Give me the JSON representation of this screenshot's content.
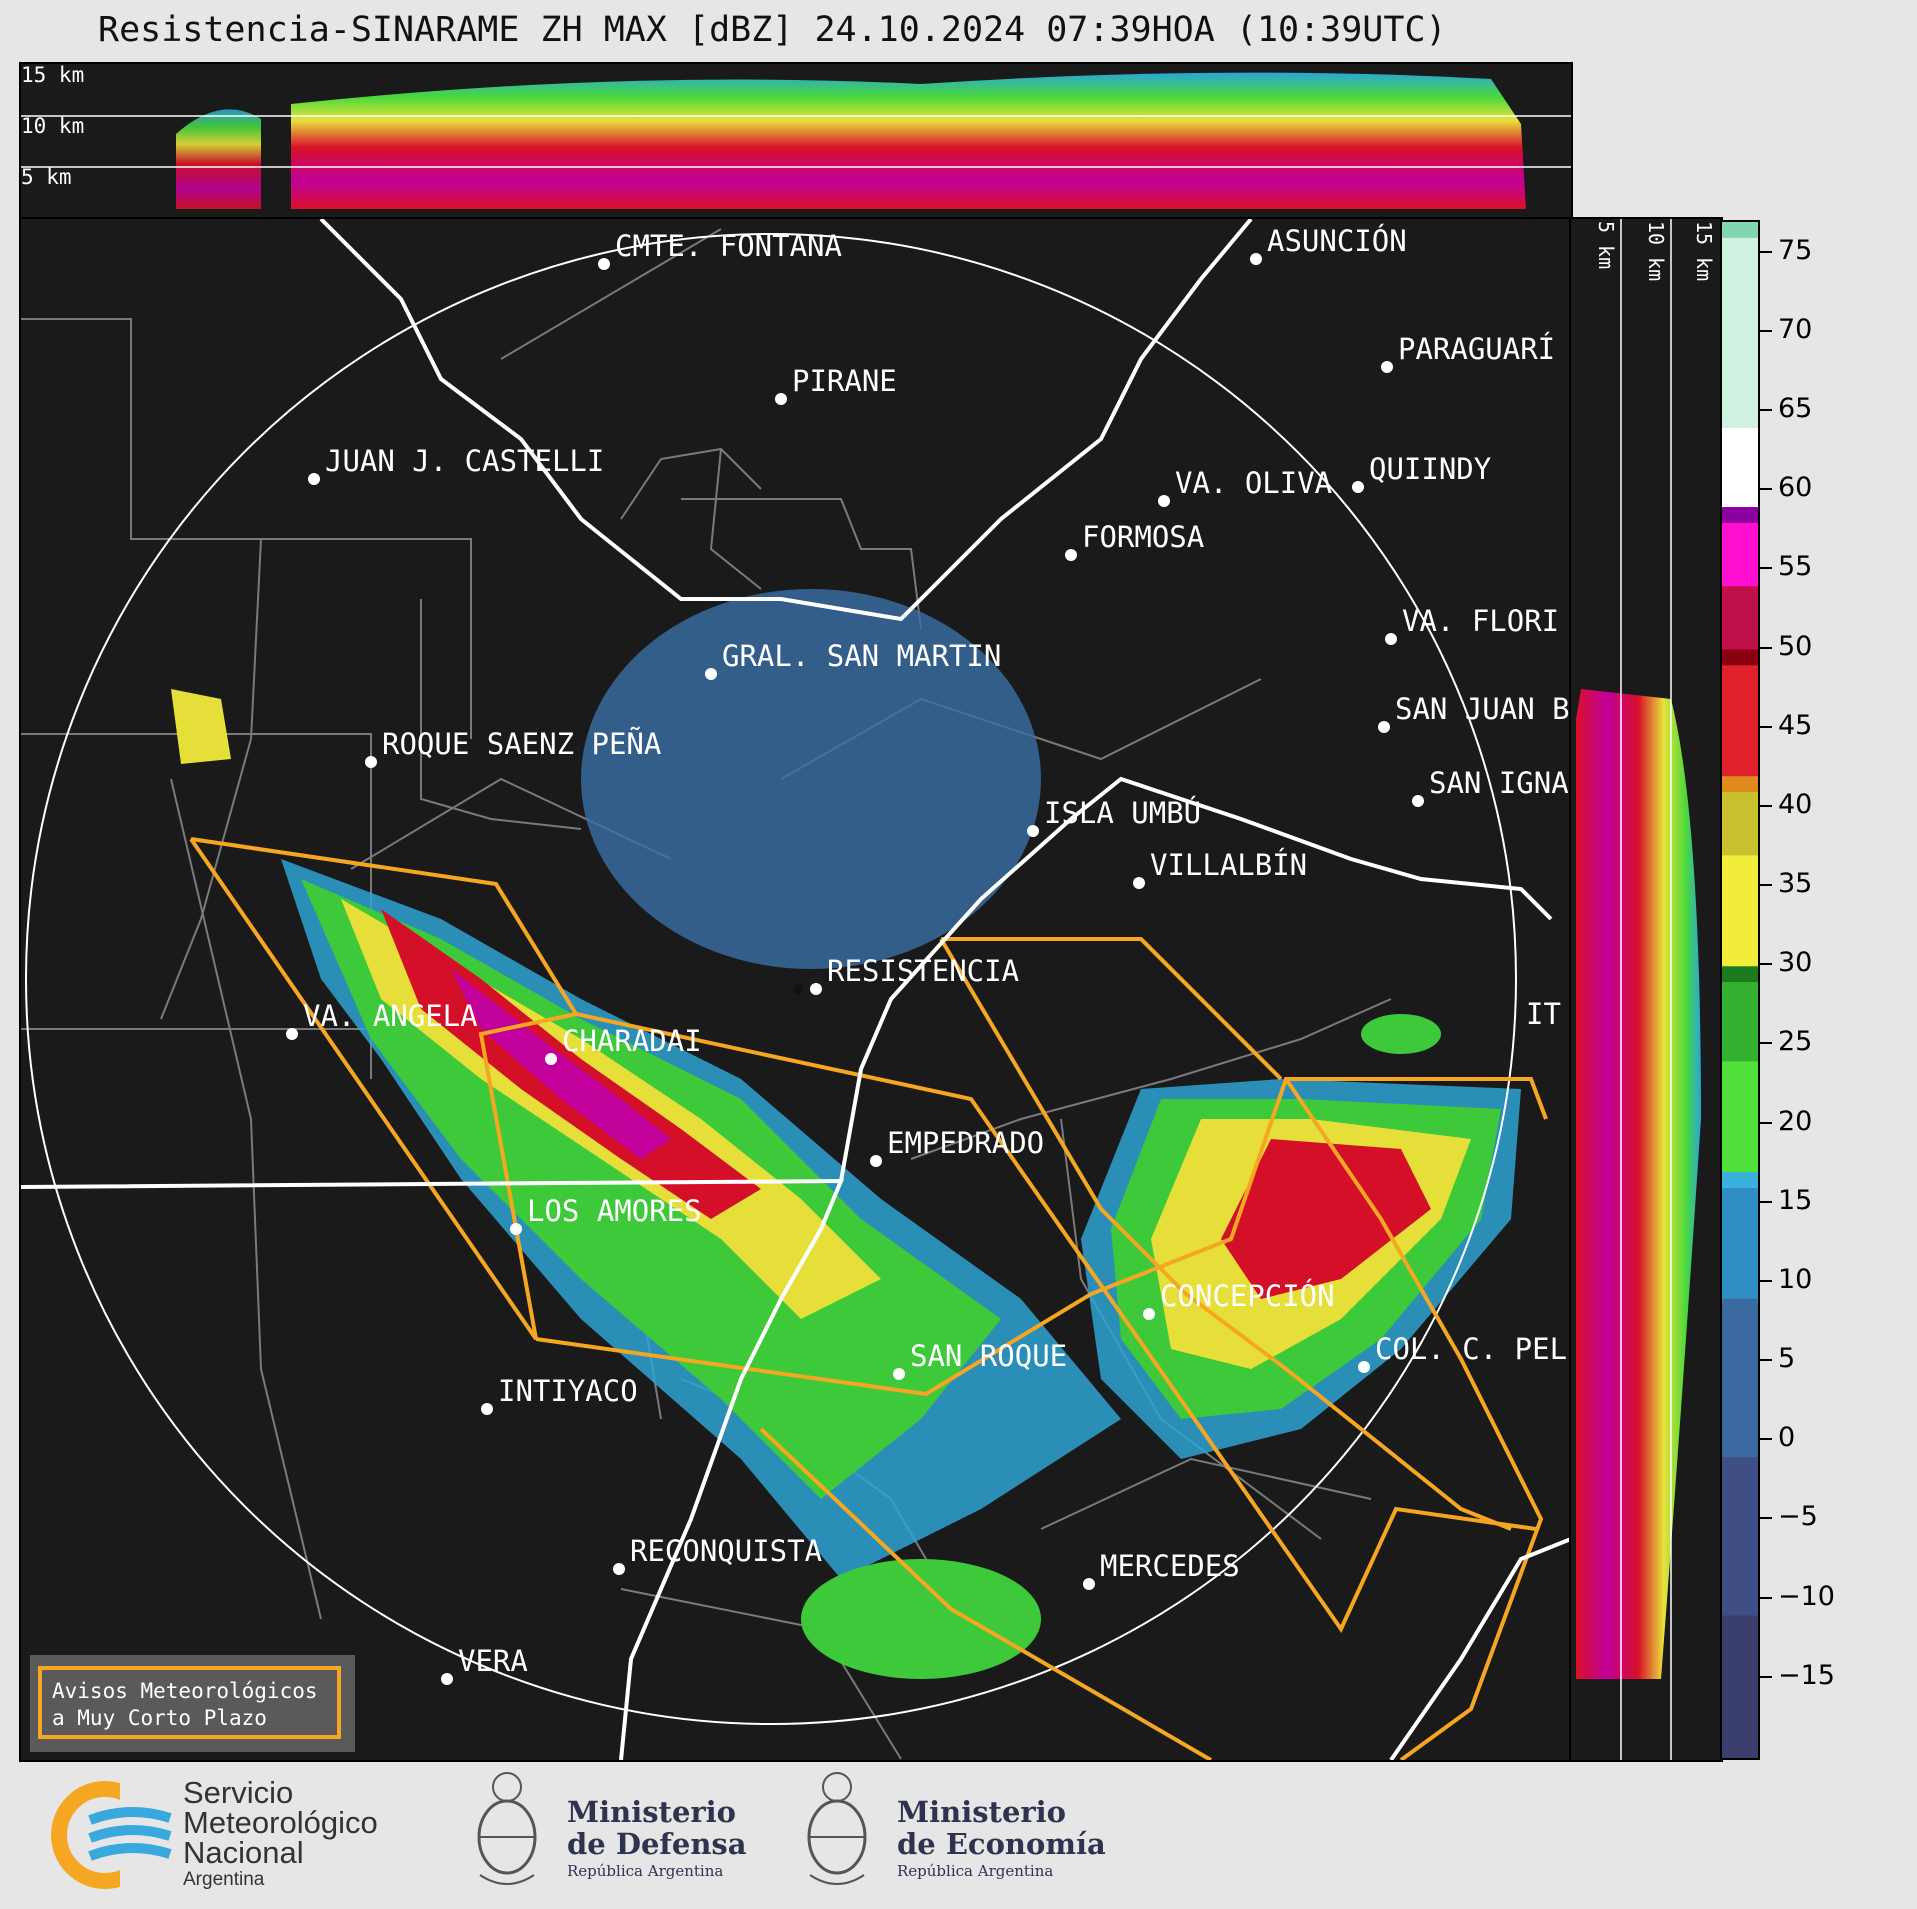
{
  "title": "Resistencia-SINARAME ZH MAX [dBZ] 24.10.2024 07:39HOA (10:39UTC)",
  "height_labels": [
    "15 km",
    "10 km",
    "5 km"
  ],
  "side_height_labels": [
    "5 km",
    "10 km",
    "15 km"
  ],
  "colorbar": {
    "ticks": [
      "75",
      "70",
      "65",
      "60",
      "55",
      "50",
      "45",
      "40",
      "35",
      "30",
      "25",
      "20",
      "15",
      "10",
      "5",
      "0",
      "−5",
      "−10",
      "−15"
    ],
    "range": [
      -20,
      77
    ]
  },
  "cities": [
    {
      "name": "CMTE. FONTANA"
    },
    {
      "name": "ASUNCIÓN"
    },
    {
      "name": "PIRANE"
    },
    {
      "name": "PARAGUARÍ"
    },
    {
      "name": "JUAN J. CASTELLI"
    },
    {
      "name": "VA. OLIVA"
    },
    {
      "name": "QUIINDY"
    },
    {
      "name": "FORMOSA"
    },
    {
      "name": "VA. FLORI"
    },
    {
      "name": "GRAL. SAN MARTIN"
    },
    {
      "name": "SAN JUAN B"
    },
    {
      "name": "ROQUE SAENZ PEÑA"
    },
    {
      "name": "SAN IGNA"
    },
    {
      "name": "ISLA UMBÚ"
    },
    {
      "name": "VILLALBÍN"
    },
    {
      "name": "RESISTENCIA"
    },
    {
      "name": "VA. ANGELA"
    },
    {
      "name": "CHARADAI"
    },
    {
      "name": "IT"
    },
    {
      "name": "EMPEDRADO"
    },
    {
      "name": "LOS AMORES"
    },
    {
      "name": "CONCEPCIÓN"
    },
    {
      "name": "SAN ROQUE"
    },
    {
      "name": "COL. C. PEL"
    },
    {
      "name": "INTIYACO"
    },
    {
      "name": "RECONQUISTA"
    },
    {
      "name": "MERCEDES"
    },
    {
      "name": "VERA"
    }
  ],
  "legend": {
    "line1": "Avisos Meteorológicos",
    "line2": "a Muy Corto Plazo"
  },
  "logos": {
    "smn": [
      "Servicio",
      "Meteorológico",
      "Nacional",
      "Argentina"
    ],
    "defensa": [
      "Ministerio",
      "de Defensa",
      "República Argentina"
    ],
    "economia": [
      "Ministerio",
      "de Economía",
      "República Argentina"
    ]
  },
  "colors": {
    "warning": "#f5a623",
    "background": "#1a1a1a",
    "borders": "#ffffff"
  }
}
